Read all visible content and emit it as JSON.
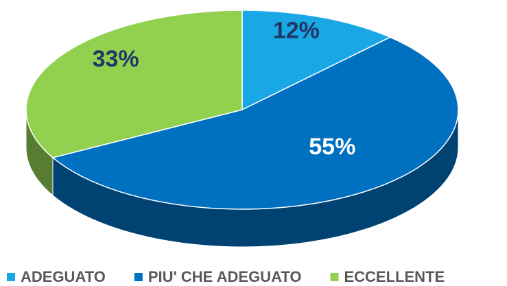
{
  "chart_data": {
    "type": "pie",
    "categories": [
      "ADEGUATO",
      "PIU' CHE ADEGUATO",
      "ECCELLENTE"
    ],
    "values": [
      12,
      55,
      33
    ],
    "value_labels": [
      "12%",
      "55%",
      "33%"
    ],
    "colors": [
      "#1aa7e6",
      "#0070c0",
      "#92d050"
    ],
    "label_colors": [
      "#1f3864",
      "#ffffff",
      "#1f3864"
    ],
    "legend": "bottom"
  }
}
